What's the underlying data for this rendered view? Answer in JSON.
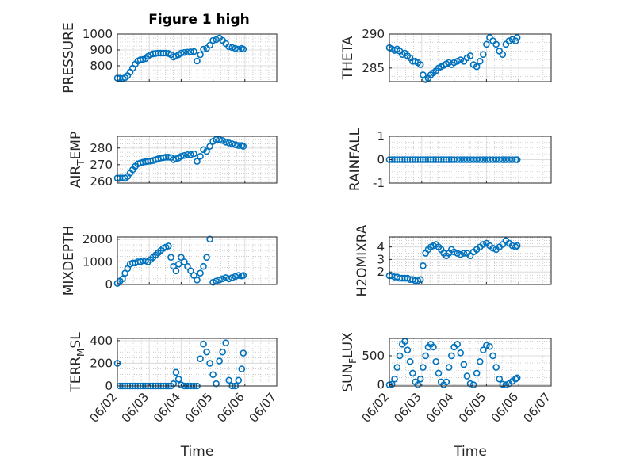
{
  "figure": {
    "title": "Figure 1 high",
    "xlabel": "Time"
  },
  "colors": {
    "marker": "#0072BD",
    "axis": "#262626",
    "grid": "#DCDCDC",
    "minor_grid": "#B0B0B0"
  },
  "chart_data": [
    {
      "id": "pressure",
      "type": "scatter",
      "title": "Figure 1 high",
      "ylabel": "PRESSURE",
      "ylim": [
        700,
        1000
      ],
      "yticks": [
        800,
        900,
        1000
      ],
      "xlim": [
        0,
        5
      ],
      "xticks": [
        "06/02",
        "06/03",
        "06/04",
        "06/05",
        "06/06",
        "06/07"
      ],
      "show_xticklabels": false,
      "xlabel": "",
      "x": [
        0.0,
        0.08,
        0.16,
        0.24,
        0.32,
        0.4,
        0.48,
        0.56,
        0.64,
        0.72,
        0.8,
        0.88,
        0.96,
        1.04,
        1.12,
        1.2,
        1.28,
        1.36,
        1.44,
        1.52,
        1.6,
        1.68,
        1.76,
        1.84,
        1.92,
        2.0,
        2.1,
        2.2,
        2.3,
        2.4,
        2.5,
        2.6,
        2.7,
        2.8,
        2.9,
        3.0,
        3.1,
        3.2,
        3.3,
        3.4,
        3.5,
        3.6,
        3.7,
        3.8,
        3.9,
        3.95
      ],
      "y": [
        722,
        722,
        720,
        725,
        738,
        760,
        785,
        810,
        830,
        838,
        840,
        845,
        860,
        870,
        876,
        878,
        880,
        880,
        880,
        880,
        878,
        870,
        855,
        860,
        870,
        880,
        884,
        886,
        888,
        890,
        830,
        870,
        905,
        910,
        930,
        960,
        965,
        975,
        960,
        940,
        920,
        915,
        910,
        905,
        910,
        905
      ]
    },
    {
      "id": "theta",
      "type": "scatter",
      "ylabel": "THETA",
      "ylim": [
        283,
        290
      ],
      "yticks": [
        285,
        290
      ],
      "xlim": [
        0,
        5
      ],
      "xticks": [
        "06/02",
        "06/03",
        "06/04",
        "06/05",
        "06/06",
        "06/07"
      ],
      "show_xticklabels": false,
      "xlabel": "",
      "x": [
        0.0,
        0.08,
        0.16,
        0.24,
        0.32,
        0.4,
        0.48,
        0.56,
        0.64,
        0.72,
        0.8,
        0.88,
        0.96,
        1.04,
        1.12,
        1.2,
        1.28,
        1.36,
        1.44,
        1.52,
        1.6,
        1.68,
        1.76,
        1.84,
        1.92,
        2.0,
        2.1,
        2.2,
        2.3,
        2.4,
        2.5,
        2.6,
        2.7,
        2.8,
        2.9,
        3.0,
        3.1,
        3.2,
        3.3,
        3.4,
        3.5,
        3.6,
        3.7,
        3.8,
        3.9,
        3.95
      ],
      "y": [
        288,
        287.8,
        287.6,
        287.8,
        287.5,
        287.0,
        287.2,
        286.8,
        286.5,
        286.0,
        286.0,
        285.8,
        285.5,
        284.0,
        283.3,
        283.5,
        284.0,
        284.3,
        284.6,
        285.0,
        285.2,
        285.4,
        285.6,
        285.8,
        285.5,
        285.8,
        286.0,
        286.2,
        286.0,
        286.5,
        286.8,
        285.5,
        285.2,
        286.0,
        287.0,
        288.5,
        289.5,
        289.0,
        288.5,
        287.5,
        287.0,
        288.5,
        289.0,
        289.2,
        289.0,
        289.5
      ]
    },
    {
      "id": "air_temp",
      "type": "scatter",
      "ylabel": "AIR_TEMP",
      "ylabel_parts": [
        "AIR",
        "T",
        "EMP"
      ],
      "ylim": [
        259,
        287
      ],
      "yticks": [
        260,
        270,
        280
      ],
      "xlim": [
        0,
        5
      ],
      "xticks": [
        "06/02",
        "06/03",
        "06/04",
        "06/05",
        "06/06",
        "06/07"
      ],
      "show_xticklabels": false,
      "xlabel": "",
      "x": [
        0.0,
        0.08,
        0.16,
        0.24,
        0.32,
        0.4,
        0.48,
        0.56,
        0.64,
        0.72,
        0.8,
        0.88,
        0.96,
        1.04,
        1.12,
        1.2,
        1.28,
        1.36,
        1.44,
        1.52,
        1.6,
        1.68,
        1.76,
        1.84,
        1.92,
        2.0,
        2.1,
        2.2,
        2.3,
        2.4,
        2.5,
        2.6,
        2.7,
        2.8,
        2.9,
        3.0,
        3.1,
        3.2,
        3.3,
        3.4,
        3.5,
        3.6,
        3.7,
        3.8,
        3.9,
        3.95
      ],
      "y": [
        262,
        262,
        262,
        262,
        263,
        265,
        267,
        269,
        270.5,
        271,
        271.5,
        271.8,
        272,
        272.2,
        272.5,
        273,
        273.5,
        274,
        274.2,
        274.5,
        274.5,
        274.3,
        273,
        273.5,
        274,
        275,
        275.5,
        276,
        276,
        276.5,
        272,
        275,
        279,
        278,
        281,
        284,
        285,
        285,
        284.5,
        283.5,
        283,
        282.5,
        282,
        281.5,
        281.5,
        281
      ]
    },
    {
      "id": "rainfall",
      "type": "scatter",
      "ylabel": "RAINFALL",
      "ylim": [
        -1,
        1
      ],
      "yticks": [
        -1,
        0,
        1
      ],
      "xlim": [
        0,
        5
      ],
      "xticks": [
        "06/02",
        "06/03",
        "06/04",
        "06/05",
        "06/06",
        "06/07"
      ],
      "show_xticklabels": false,
      "xlabel": "",
      "x": [
        0.0,
        0.08,
        0.16,
        0.24,
        0.32,
        0.4,
        0.48,
        0.56,
        0.64,
        0.72,
        0.8,
        0.88,
        0.96,
        1.04,
        1.12,
        1.2,
        1.28,
        1.36,
        1.44,
        1.52,
        1.6,
        1.68,
        1.76,
        1.84,
        1.92,
        2.0,
        2.1,
        2.2,
        2.3,
        2.4,
        2.5,
        2.6,
        2.7,
        2.8,
        2.9,
        3.0,
        3.1,
        3.2,
        3.3,
        3.4,
        3.5,
        3.6,
        3.7,
        3.8,
        3.9,
        3.95
      ],
      "y": [
        0,
        0,
        0,
        0,
        0,
        0,
        0,
        0,
        0,
        0,
        0,
        0,
        0,
        0,
        0,
        0,
        0,
        0,
        0,
        0,
        0,
        0,
        0,
        0,
        0,
        0,
        0,
        0,
        0,
        0,
        0,
        0,
        0,
        0,
        0,
        0,
        0,
        0,
        0,
        0,
        0,
        0,
        0,
        0,
        0,
        0
      ]
    },
    {
      "id": "mixdepth",
      "type": "scatter",
      "ylabel": "MIXDEPTH",
      "ylim": [
        0,
        2100
      ],
      "yticks": [
        0,
        1000,
        2000
      ],
      "xlim": [
        0,
        5
      ],
      "xticks": [
        "06/02",
        "06/03",
        "06/04",
        "06/05",
        "06/06",
        "06/07"
      ],
      "show_xticklabels": false,
      "xlabel": "",
      "x": [
        0.0,
        0.08,
        0.16,
        0.24,
        0.32,
        0.4,
        0.48,
        0.56,
        0.64,
        0.72,
        0.8,
        0.88,
        0.96,
        1.04,
        1.12,
        1.2,
        1.28,
        1.36,
        1.44,
        1.52,
        1.6,
        1.68,
        1.76,
        1.84,
        1.92,
        2.0,
        2.1,
        2.2,
        2.3,
        2.4,
        2.5,
        2.6,
        2.7,
        2.8,
        2.9,
        3.0,
        3.1,
        3.2,
        3.3,
        3.4,
        3.5,
        3.6,
        3.7,
        3.8,
        3.9,
        3.95
      ],
      "y": [
        50,
        150,
        250,
        500,
        700,
        900,
        950,
        950,
        1000,
        1000,
        1050,
        1050,
        1000,
        1100,
        1200,
        1300,
        1400,
        1500,
        1600,
        1650,
        1700,
        1200,
        800,
        600,
        900,
        1200,
        1000,
        800,
        600,
        400,
        200,
        500,
        800,
        1200,
        2000,
        100,
        150,
        200,
        250,
        300,
        250,
        300,
        350,
        400,
        380,
        400
      ]
    },
    {
      "id": "h2omixra",
      "type": "scatter",
      "ylabel": "H2OMIXRA",
      "ylim": [
        1,
        4.8
      ],
      "yticks": [
        2,
        3,
        4
      ],
      "xlim": [
        0,
        5
      ],
      "xticks": [
        "06/02",
        "06/03",
        "06/04",
        "06/05",
        "06/06",
        "06/07"
      ],
      "show_xticklabels": false,
      "xlabel": "",
      "x": [
        0.0,
        0.08,
        0.16,
        0.24,
        0.32,
        0.4,
        0.48,
        0.56,
        0.64,
        0.72,
        0.8,
        0.88,
        0.96,
        1.04,
        1.12,
        1.2,
        1.28,
        1.36,
        1.44,
        1.52,
        1.6,
        1.68,
        1.76,
        1.84,
        1.92,
        2.0,
        2.1,
        2.2,
        2.3,
        2.4,
        2.5,
        2.6,
        2.7,
        2.8,
        2.9,
        3.0,
        3.1,
        3.2,
        3.3,
        3.4,
        3.5,
        3.6,
        3.7,
        3.8,
        3.9,
        3.95
      ],
      "y": [
        1.7,
        1.7,
        1.6,
        1.6,
        1.5,
        1.5,
        1.5,
        1.5,
        1.4,
        1.4,
        1.3,
        1.3,
        1.4,
        2.5,
        3.5,
        3.8,
        4.0,
        4.1,
        4.2,
        4.0,
        3.8,
        3.5,
        3.3,
        3.5,
        3.8,
        3.6,
        3.5,
        3.4,
        3.5,
        3.5,
        3.3,
        3.6,
        3.8,
        4.0,
        4.2,
        4.3,
        4.1,
        3.9,
        3.8,
        4.0,
        4.2,
        4.5,
        4.3,
        4.1,
        4.0,
        4.1
      ]
    },
    {
      "id": "terr_msl",
      "type": "scatter",
      "ylabel": "TERR_MSL",
      "ylabel_parts": [
        "TERR",
        "M",
        "SL"
      ],
      "ylim": [
        0,
        420
      ],
      "yticks": [
        0,
        200,
        400
      ],
      "xlim": [
        0,
        5
      ],
      "xticks": [
        "06/02",
        "06/03",
        "06/04",
        "06/05",
        "06/06",
        "06/07"
      ],
      "show_xticklabels": true,
      "xlabel": "Time",
      "x": [
        0.0,
        0.08,
        0.16,
        0.24,
        0.32,
        0.4,
        0.48,
        0.56,
        0.64,
        0.72,
        0.8,
        0.88,
        0.96,
        1.04,
        1.12,
        1.2,
        1.28,
        1.36,
        1.44,
        1.52,
        1.6,
        1.68,
        1.76,
        1.84,
        1.92,
        2.0,
        2.1,
        2.2,
        2.3,
        2.4,
        2.5,
        2.6,
        2.7,
        2.8,
        2.9,
        3.0,
        3.1,
        3.2,
        3.3,
        3.4,
        3.5,
        3.6,
        3.7,
        3.8,
        3.9,
        3.95
      ],
      "y": [
        200,
        0,
        0,
        0,
        0,
        0,
        0,
        0,
        0,
        0,
        0,
        0,
        0,
        0,
        0,
        0,
        0,
        0,
        0,
        0,
        0,
        0,
        20,
        120,
        60,
        10,
        0,
        0,
        0,
        0,
        0,
        240,
        370,
        300,
        200,
        100,
        20,
        220,
        300,
        380,
        50,
        0,
        0,
        50,
        150,
        290
      ]
    },
    {
      "id": "sun_flux",
      "type": "scatter",
      "ylabel": "SUN_FLUX",
      "ylabel_parts": [
        "SUN",
        "F",
        "LUX"
      ],
      "ylim": [
        -20,
        800
      ],
      "yticks": [
        0,
        500
      ],
      "xlim": [
        0,
        5
      ],
      "xticks": [
        "06/02",
        "06/03",
        "06/04",
        "06/05",
        "06/06",
        "06/07"
      ],
      "show_xticklabels": true,
      "xlabel": "Time",
      "x": [
        0.0,
        0.08,
        0.16,
        0.24,
        0.32,
        0.4,
        0.48,
        0.56,
        0.64,
        0.72,
        0.8,
        0.88,
        0.96,
        1.04,
        1.12,
        1.2,
        1.28,
        1.36,
        1.44,
        1.52,
        1.6,
        1.68,
        1.76,
        1.84,
        1.92,
        2.0,
        2.1,
        2.2,
        2.3,
        2.4,
        2.5,
        2.6,
        2.7,
        2.8,
        2.9,
        3.0,
        3.1,
        3.2,
        3.3,
        3.4,
        3.5,
        3.6,
        3.7,
        3.8,
        3.9,
        3.95
      ],
      "y": [
        0,
        10,
        100,
        300,
        500,
        700,
        750,
        600,
        400,
        200,
        50,
        0,
        100,
        300,
        500,
        650,
        700,
        650,
        400,
        200,
        50,
        0,
        50,
        300,
        500,
        650,
        700,
        550,
        350,
        150,
        20,
        0,
        200,
        400,
        600,
        680,
        660,
        500,
        300,
        100,
        10,
        0,
        20,
        60,
        100,
        120
      ]
    }
  ]
}
